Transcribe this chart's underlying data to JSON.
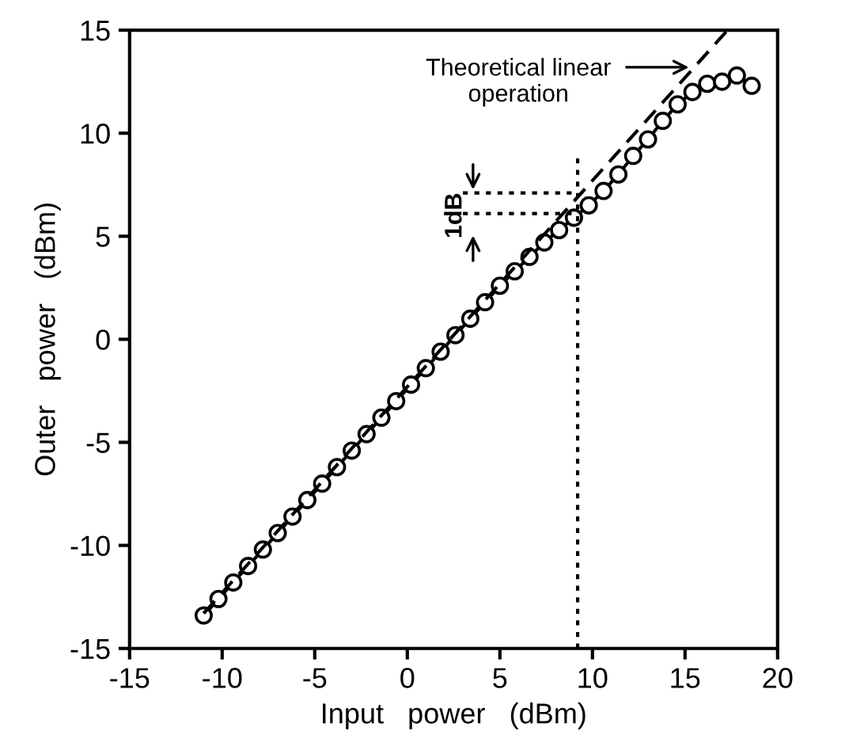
{
  "chart_data": {
    "type": "line",
    "xlabel": "Input   power   (dBm)",
    "ylabel": "Outer   power   (dBm)",
    "xlim": [
      -15,
      20
    ],
    "ylim": [
      -15,
      15
    ],
    "xticks": [
      -15,
      -10,
      -5,
      0,
      5,
      10,
      15,
      20
    ],
    "yticks": [
      -15,
      -10,
      -5,
      0,
      5,
      10,
      15
    ],
    "grid": false,
    "legend": false,
    "series": [
      {
        "color": "#000000",
        "marker": "circle",
        "line_style": "solid",
        "x": [
          -11,
          -10.2,
          -9.4,
          -8.6,
          -7.8,
          -7,
          -6.2,
          -5.4,
          -4.6,
          -3.8,
          -3,
          -2.2,
          -1.4,
          -0.6,
          0.2,
          1,
          1.8,
          2.6,
          3.4,
          4.2,
          5,
          5.8,
          6.6,
          7.4,
          8.2,
          9,
          9.8,
          10.6,
          11.4,
          12.2,
          13,
          13.8,
          14.6,
          15.4,
          16.2,
          17,
          17.8,
          18.6
        ],
        "values": [
          -13.4,
          -12.6,
          -11.8,
          -11,
          -10.2,
          -9.4,
          -8.6,
          -7.8,
          -7,
          -6.2,
          -5.4,
          -4.6,
          -3.8,
          -3,
          -2.2,
          -1.4,
          -0.6,
          0.2,
          1,
          1.8,
          2.6,
          3.3,
          4.0,
          4.7,
          5.3,
          5.9,
          6.5,
          7.2,
          8.0,
          8.9,
          9.7,
          10.6,
          11.4,
          12.0,
          12.4,
          12.5,
          12.8,
          12.3
        ]
      },
      {
        "color": "#000000",
        "marker": "none",
        "line_style": "dashed",
        "x": [
          -11,
          17.3
        ],
        "values": [
          -13.3,
          15
        ]
      },
      {
        "color": "#000000",
        "marker": "none",
        "line_style": "dotted",
        "x": [
          9.2,
          9.2
        ],
        "values": [
          -15,
          9
        ]
      },
      {
        "color": "#000000",
        "marker": "none",
        "line_style": "dotted",
        "x": [
          3,
          9.2
        ],
        "values": [
          7.1,
          7.1
        ]
      },
      {
        "color": "#000000",
        "marker": "none",
        "line_style": "dotted",
        "x": [
          3,
          9.2
        ],
        "values": [
          6.1,
          6.1
        ]
      }
    ],
    "annotations": [
      "Theoretical linear\noperation",
      "1dB"
    ]
  }
}
